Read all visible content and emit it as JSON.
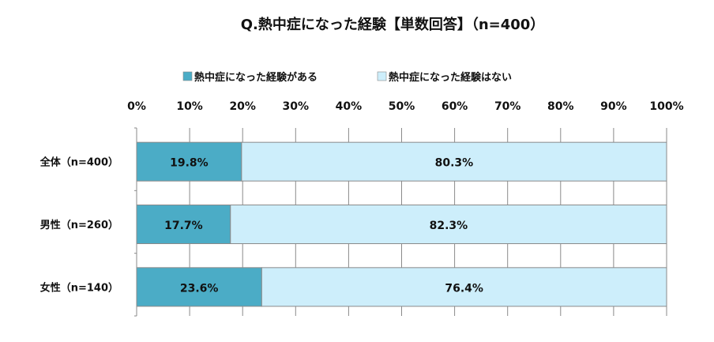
{
  "chart_data": {
    "type": "bar",
    "orientation": "horizontal",
    "stacked": true,
    "title": "Q.熱中症になった経験【単数回答】（n=400）",
    "categories": [
      "全体（n=400）",
      "男性（n=260）",
      "女性（n=140）"
    ],
    "series": [
      {
        "name": "熱中症になった経験がある",
        "values": [
          19.8,
          17.7,
          23.6
        ],
        "labels": [
          "19.8%",
          "17.7%",
          "23.6%"
        ],
        "color": "#4bacc6"
      },
      {
        "name": "熱中症になった経験はない",
        "values": [
          80.3,
          82.3,
          76.4
        ],
        "labels": [
          "80.3%",
          "82.3%",
          "76.4%"
        ],
        "color": "#cdeefb"
      }
    ],
    "xlim": [
      0,
      100
    ],
    "xticks": [
      "0%",
      "10%",
      "20%",
      "30%",
      "40%",
      "50%",
      "60%",
      "70%",
      "80%",
      "90%",
      "100%"
    ],
    "xaxis_position": "top",
    "grid": true,
    "legend_position": "top"
  }
}
